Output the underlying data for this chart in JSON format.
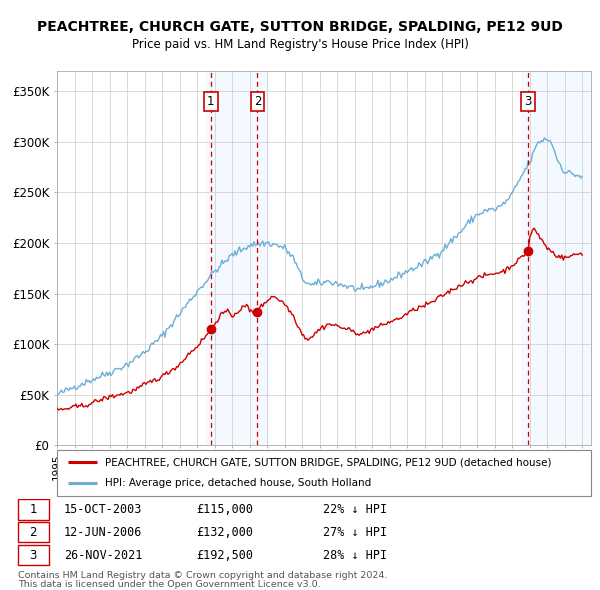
{
  "title": "PEACHTREE, CHURCH GATE, SUTTON BRIDGE, SPALDING, PE12 9UD",
  "subtitle": "Price paid vs. HM Land Registry's House Price Index (HPI)",
  "ylim": [
    0,
    370000
  ],
  "yticks": [
    0,
    50000,
    100000,
    150000,
    200000,
    250000,
    300000,
    350000
  ],
  "ytick_labels": [
    "£0",
    "£50K",
    "£100K",
    "£150K",
    "£200K",
    "£250K",
    "£300K",
    "£350K"
  ],
  "year_start": 1995,
  "year_end": 2025,
  "sale_decimal": [
    2003.79,
    2006.45,
    2021.9
  ],
  "sale_prices": [
    115000,
    132000,
    192500
  ],
  "sale_labels": [
    "1",
    "2",
    "3"
  ],
  "hpi_color": "#6baed6",
  "price_color": "#cc0000",
  "sale_vline_color": "#cc0000",
  "shade_color": "#ddeeff",
  "shade_alpha": 0.35,
  "legend_line1": "PEACHTREE, CHURCH GATE, SUTTON BRIDGE, SPALDING, PE12 9UD (detached house)",
  "legend_line2": "HPI: Average price, detached house, South Holland",
  "table_rows": [
    [
      "1",
      "15-OCT-2003",
      "£115,000",
      "22% ↓ HPI"
    ],
    [
      "2",
      "12-JUN-2006",
      "£132,000",
      "27% ↓ HPI"
    ],
    [
      "3",
      "26-NOV-2021",
      "£192,500",
      "28% ↓ HPI"
    ]
  ],
  "footnote1": "Contains HM Land Registry data © Crown copyright and database right 2024.",
  "footnote2": "This data is licensed under the Open Government Licence v3.0.",
  "grid_color": "#cccccc",
  "hpi_keypoints": [
    [
      1995.0,
      50000
    ],
    [
      1996.0,
      58000
    ],
    [
      1997.0,
      65000
    ],
    [
      1998.0,
      72000
    ],
    [
      1999.0,
      80000
    ],
    [
      2000.0,
      92000
    ],
    [
      2001.0,
      108000
    ],
    [
      2002.0,
      130000
    ],
    [
      2003.0,
      152000
    ],
    [
      2004.0,
      172000
    ],
    [
      2005.0,
      188000
    ],
    [
      2006.0,
      198000
    ],
    [
      2007.0,
      200000
    ],
    [
      2007.5,
      198000
    ],
    [
      2008.0,
      195000
    ],
    [
      2008.5,
      185000
    ],
    [
      2009.0,
      165000
    ],
    [
      2009.5,
      158000
    ],
    [
      2010.0,
      160000
    ],
    [
      2010.5,
      162000
    ],
    [
      2011.0,
      160000
    ],
    [
      2012.0,
      155000
    ],
    [
      2012.5,
      153000
    ],
    [
      2013.0,
      157000
    ],
    [
      2014.0,
      163000
    ],
    [
      2015.0,
      172000
    ],
    [
      2016.0,
      180000
    ],
    [
      2017.0,
      193000
    ],
    [
      2018.0,
      210000
    ],
    [
      2018.5,
      220000
    ],
    [
      2019.0,
      228000
    ],
    [
      2019.5,
      232000
    ],
    [
      2020.0,
      233000
    ],
    [
      2020.5,
      238000
    ],
    [
      2021.0,
      248000
    ],
    [
      2021.5,
      265000
    ],
    [
      2022.0,
      280000
    ],
    [
      2022.5,
      300000
    ],
    [
      2023.0,
      303000
    ],
    [
      2023.3,
      298000
    ],
    [
      2023.5,
      285000
    ],
    [
      2024.0,
      270000
    ],
    [
      2024.5,
      268000
    ],
    [
      2025.0,
      265000
    ]
  ],
  "price_keypoints": [
    [
      1995.0,
      35000
    ],
    [
      1995.5,
      36000
    ],
    [
      1996.0,
      38000
    ],
    [
      1996.5,
      39000
    ],
    [
      1997.0,
      42000
    ],
    [
      1997.5,
      45000
    ],
    [
      1998.0,
      48000
    ],
    [
      1998.5,
      50000
    ],
    [
      1999.0,
      52000
    ],
    [
      1999.5,
      55000
    ],
    [
      2000.0,
      60000
    ],
    [
      2000.5,
      64000
    ],
    [
      2001.0,
      68000
    ],
    [
      2001.5,
      74000
    ],
    [
      2002.0,
      80000
    ],
    [
      2002.5,
      90000
    ],
    [
      2003.0,
      98000
    ],
    [
      2003.5,
      108000
    ],
    [
      2003.79,
      115000
    ],
    [
      2004.0,
      120000
    ],
    [
      2004.3,
      128000
    ],
    [
      2004.6,
      132000
    ],
    [
      2004.9,
      130000
    ],
    [
      2005.0,
      128000
    ],
    [
      2005.3,
      132000
    ],
    [
      2005.6,
      136000
    ],
    [
      2005.9,
      138000
    ],
    [
      2006.0,
      133000
    ],
    [
      2006.3,
      130000
    ],
    [
      2006.45,
      132000
    ],
    [
      2006.7,
      138000
    ],
    [
      2007.0,
      143000
    ],
    [
      2007.3,
      148000
    ],
    [
      2007.6,
      145000
    ],
    [
      2008.0,
      140000
    ],
    [
      2008.5,
      128000
    ],
    [
      2009.0,
      110000
    ],
    [
      2009.3,
      105000
    ],
    [
      2009.6,
      108000
    ],
    [
      2010.0,
      115000
    ],
    [
      2010.5,
      120000
    ],
    [
      2011.0,
      118000
    ],
    [
      2011.5,
      115000
    ],
    [
      2012.0,
      112000
    ],
    [
      2012.5,
      110000
    ],
    [
      2013.0,
      115000
    ],
    [
      2013.5,
      118000
    ],
    [
      2014.0,
      122000
    ],
    [
      2014.5,
      125000
    ],
    [
      2015.0,
      130000
    ],
    [
      2015.5,
      135000
    ],
    [
      2016.0,
      138000
    ],
    [
      2016.5,
      142000
    ],
    [
      2017.0,
      148000
    ],
    [
      2017.5,
      153000
    ],
    [
      2018.0,
      158000
    ],
    [
      2018.5,
      162000
    ],
    [
      2019.0,
      165000
    ],
    [
      2019.5,
      168000
    ],
    [
      2020.0,
      170000
    ],
    [
      2020.5,
      172000
    ],
    [
      2021.0,
      178000
    ],
    [
      2021.5,
      185000
    ],
    [
      2021.9,
      192500
    ],
    [
      2022.0,
      205000
    ],
    [
      2022.2,
      215000
    ],
    [
      2022.4,
      210000
    ],
    [
      2022.6,
      205000
    ],
    [
      2023.0,
      195000
    ],
    [
      2023.5,
      188000
    ],
    [
      2024.0,
      185000
    ],
    [
      2024.5,
      188000
    ],
    [
      2025.0,
      190000
    ]
  ]
}
